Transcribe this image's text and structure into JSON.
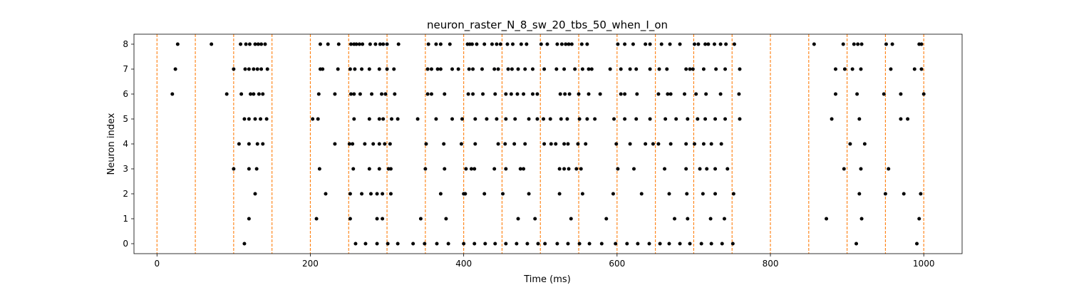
{
  "chart_data": {
    "type": "scatter",
    "title": "neuron_raster_N_8_sw_20_tbs_50_when_I_on",
    "xlabel": "Time (ms)",
    "ylabel": "Neuron index",
    "xlim": [
      -30,
      1050
    ],
    "ylim": [
      -0.4,
      8.4
    ],
    "xticks": [
      0,
      200,
      400,
      600,
      800,
      1000
    ],
    "yticks": [
      0,
      1,
      2,
      3,
      4,
      5,
      6,
      7,
      8
    ],
    "grid": false,
    "marker_color": "#000000",
    "vline_color": "#ff7f0e",
    "vlines_x": [
      0,
      50,
      100,
      150,
      200,
      250,
      300,
      350,
      400,
      450,
      500,
      550,
      600,
      650,
      700,
      750,
      800,
      850,
      900,
      950,
      1000
    ],
    "neurons": [
      {
        "index": 0,
        "spikes": [
          114,
          259,
          272,
          287,
          301,
          314,
          334,
          349,
          365,
          380,
          400,
          414,
          428,
          441,
          455,
          469,
          483,
          497,
          506,
          522,
          536,
          551,
          564,
          580,
          598,
          613,
          627,
          642,
          656,
          668,
          682,
          695,
          710,
          723,
          737,
          751,
          912,
          991
        ]
      },
      {
        "index": 1,
        "spikes": [
          120,
          208,
          252,
          287,
          294,
          344,
          377,
          471,
          493,
          540,
          586,
          675,
          692,
          722,
          740,
          873,
          919,
          994
        ]
      },
      {
        "index": 2,
        "spikes": [
          128,
          220,
          252,
          267,
          279,
          287,
          294,
          305,
          370,
          400,
          402,
          427,
          451,
          485,
          525,
          555,
          595,
          632,
          668,
          691,
          712,
          728,
          752,
          916,
          950,
          974,
          996
        ]
      },
      {
        "index": 3,
        "spikes": [
          100,
          120,
          130,
          212,
          256,
          277,
          290,
          302,
          305,
          350,
          375,
          403,
          410,
          414,
          440,
          455,
          474,
          478,
          525,
          531,
          537,
          547,
          553,
          601,
          622,
          662,
          690,
          708,
          717,
          728,
          744,
          896,
          918,
          954
        ]
      },
      {
        "index": 4,
        "spikes": [
          107,
          120,
          131,
          138,
          232,
          251,
          255,
          271,
          282,
          290,
          297,
          304,
          351,
          374,
          397,
          415,
          445,
          454,
          466,
          480,
          505,
          514,
          520,
          531,
          536,
          549,
          559,
          599,
          617,
          637,
          647,
          654,
          670,
          690,
          701,
          713,
          723,
          736,
          904,
          923
        ]
      },
      {
        "index": 5,
        "spikes": [
          114,
          120,
          128,
          135,
          143,
          203,
          210,
          257,
          277,
          290,
          295,
          306,
          314,
          340,
          364,
          385,
          398,
          415,
          430,
          443,
          455,
          467,
          485,
          496,
          504,
          513,
          527,
          535,
          551,
          561,
          571,
          596,
          610,
          625,
          643,
          663,
          677,
          692,
          705,
          715,
          728,
          741,
          760,
          880,
          916,
          970,
          979
        ]
      },
      {
        "index": 6,
        "spikes": [
          20,
          91,
          110,
          122,
          126,
          133,
          138,
          211,
          232,
          253,
          257,
          265,
          280,
          293,
          298,
          310,
          353,
          358,
          375,
          406,
          412,
          425,
          441,
          455,
          462,
          470,
          478,
          490,
          496,
          526,
          532,
          538,
          550,
          563,
          578,
          605,
          610,
          626,
          654,
          666,
          670,
          688,
          703,
          716,
          735,
          759,
          885,
          913,
          948,
          970,
          1000
        ]
      },
      {
        "index": 7,
        "spikes": [
          24,
          100,
          115,
          120,
          126,
          131,
          136,
          144,
          213,
          216,
          236,
          252,
          258,
          267,
          277,
          290,
          300,
          309,
          353,
          358,
          366,
          370,
          385,
          393,
          407,
          412,
          424,
          440,
          445,
          458,
          463,
          471,
          480,
          490,
          505,
          521,
          531,
          545,
          555,
          563,
          567,
          591,
          605,
          617,
          625,
          643,
          655,
          665,
          690,
          695,
          699,
          713,
          729,
          741,
          760,
          885,
          897,
          907,
          918,
          957,
          988,
          997
        ]
      },
      {
        "index": 8,
        "spikes": [
          27,
          71,
          109,
          116,
          121,
          128,
          132,
          136,
          141,
          213,
          223,
          237,
          253,
          257,
          260,
          264,
          268,
          278,
          285,
          291,
          295,
          300,
          315,
          354,
          364,
          370,
          382,
          405,
          408,
          411,
          417,
          427,
          437,
          443,
          448,
          457,
          464,
          475,
          482,
          501,
          509,
          522,
          528,
          533,
          537,
          541,
          554,
          561,
          601,
          610,
          621,
          637,
          643,
          658,
          669,
          682,
          701,
          706,
          715,
          719,
          727,
          735,
          742,
          753,
          857,
          895,
          909,
          914,
          919,
          951,
          959,
          994,
          997
        ]
      }
    ]
  }
}
